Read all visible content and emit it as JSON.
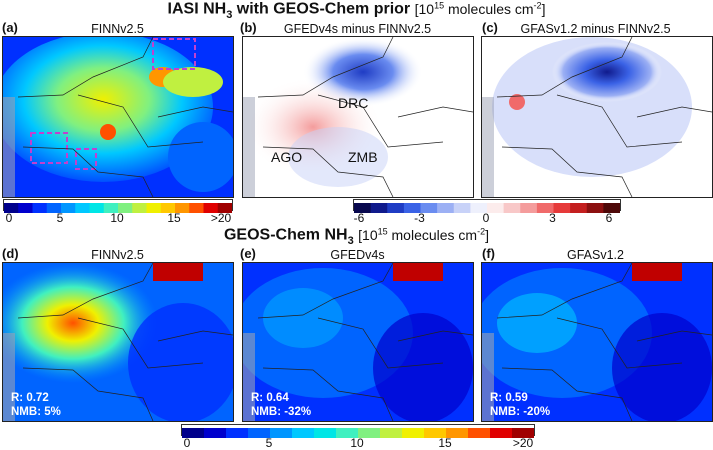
{
  "top_title": {
    "main": "IASI NH",
    "sub": "3",
    "rest": " with GEOS-Chem prior",
    "unit": "[10",
    "unit_exp": "15",
    "unit_rest": " molecules cm",
    "unit_exp2": "-2",
    "unit_close": "]"
  },
  "bottom_title": {
    "main": "GEOS-Chem NH",
    "sub": "3",
    "unit": "[10",
    "unit_exp": "15",
    "unit_rest": " molecules cm",
    "unit_exp2": "-2",
    "unit_close": "]"
  },
  "panels": {
    "a": {
      "label": "(a)",
      "title": "FINNv2.5"
    },
    "b": {
      "label": "(b)",
      "title": "GFEDv4s minus FINNv2.5"
    },
    "c": {
      "label": "(c)",
      "title": "GFASv1.2 minus FINNv2.5"
    },
    "d": {
      "label": "(d)",
      "title": "FINNv2.5",
      "r": "R: 0.72",
      "nmb": "NMB: 5%"
    },
    "e": {
      "label": "(e)",
      "title": "GFEDv4s",
      "r": "R: 0.64",
      "nmb": "NMB: -32%"
    },
    "f": {
      "label": "(f)",
      "title": "GFASv1.2",
      "r": "R: 0.59",
      "nmb": "NMB: -20%"
    }
  },
  "regions": {
    "drc": "DRC",
    "ago": "AGO",
    "zmb": "ZMB"
  },
  "chart_data": [
    {
      "type": "heatmap",
      "name": "top-left-colorbar",
      "ticks": [
        "0",
        "5",
        "10",
        "15",
        ">20"
      ],
      "range": [
        0,
        20
      ],
      "colors": [
        "#00008b",
        "#0000cd",
        "#0030ff",
        "#0064ff",
        "#0096ff",
        "#00c8ff",
        "#00e6e6",
        "#40f0c0",
        "#80f080",
        "#c0f040",
        "#f0f000",
        "#ffc800",
        "#ff9600",
        "#ff5000",
        "#e00000",
        "#a00000"
      ]
    },
    {
      "type": "heatmap",
      "name": "difference-colorbar",
      "ticks": [
        "-6",
        "-3",
        "0",
        "3",
        "6"
      ],
      "range": [
        -6,
        6
      ],
      "colors": [
        "#08084e",
        "#101a8c",
        "#1f3cc4",
        "#3a62e6",
        "#6a8cf0",
        "#9cb0f4",
        "#c8d2f8",
        "#eef0fc",
        "#fcecec",
        "#f8c8c8",
        "#f49c9c",
        "#f06a6a",
        "#e63a3a",
        "#c41f1f",
        "#8c1010",
        "#4e0808"
      ]
    },
    {
      "type": "heatmap",
      "name": "bottom-colorbar",
      "ticks": [
        "0",
        "5",
        "10",
        "15",
        ">20"
      ],
      "range": [
        0,
        20
      ],
      "colors": [
        "#00008b",
        "#0000cd",
        "#0030ff",
        "#0064ff",
        "#0096ff",
        "#00c8ff",
        "#00e6e6",
        "#40f0c0",
        "#80f080",
        "#c0f040",
        "#f0f000",
        "#ffc800",
        "#ff9600",
        "#ff5000",
        "#e00000",
        "#a00000"
      ]
    }
  ]
}
